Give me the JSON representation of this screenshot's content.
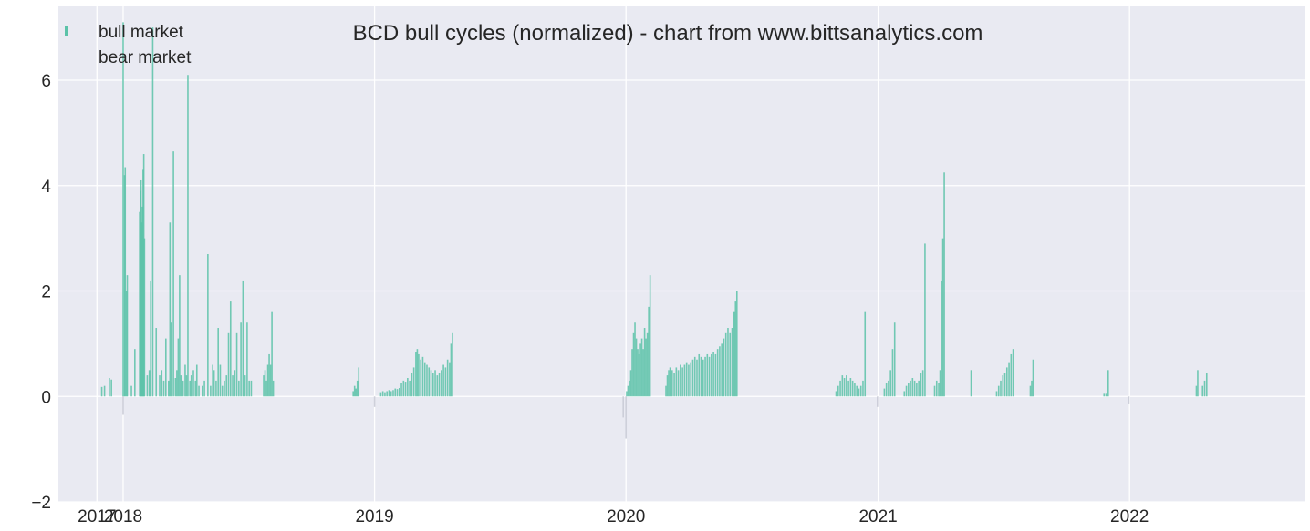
{
  "chart_data": {
    "type": "bar",
    "title": "BCD bull cycles (normalized)  - chart from www.bittsanalytics.com",
    "xlabel": "",
    "ylabel": "",
    "xlim": [
      "2017-09-29",
      "2022-09-12"
    ],
    "ylim": [
      -2,
      7.4
    ],
    "grid": true,
    "legend": {
      "placement": "top-left",
      "entries": [
        "bull market",
        "bear market"
      ]
    },
    "colors": {
      "bull": "#5bc2a8",
      "bear": "#c9cbd6",
      "plot_bg": "#e9eaf2",
      "grid": "#ffffff"
    },
    "x_ticks": [
      {
        "date": "2017-11-24",
        "label": "2017"
      },
      {
        "date": "2018-01-01",
        "label": "2018"
      },
      {
        "date": "2019-01-01",
        "label": "2019"
      },
      {
        "date": "2020-01-01",
        "label": "2020"
      },
      {
        "date": "2021-01-01",
        "label": "2021"
      },
      {
        "date": "2022-01-01",
        "label": "2022"
      }
    ],
    "y_ticks": [
      {
        "value": -2,
        "label": "−2"
      },
      {
        "value": 0,
        "label": "0"
      },
      {
        "value": 2,
        "label": "2"
      },
      {
        "value": 4,
        "label": "4"
      },
      {
        "value": 6,
        "label": "6"
      }
    ],
    "series": [
      {
        "name": "bull market",
        "values": [
          [
            "2017-12-01",
            0.18
          ],
          [
            "2017-12-05",
            0.2
          ],
          [
            "2017-12-12",
            0.35
          ],
          [
            "2017-12-15",
            0.32
          ],
          [
            "2018-01-01",
            7.1
          ],
          [
            "2018-01-03",
            4.2
          ],
          [
            "2018-01-04",
            4.35
          ],
          [
            "2018-01-06",
            2.0
          ],
          [
            "2018-01-07",
            2.3
          ],
          [
            "2018-01-13",
            0.2
          ],
          [
            "2018-01-18",
            0.9
          ],
          [
            "2018-01-25",
            3.5
          ],
          [
            "2018-01-26",
            3.9
          ],
          [
            "2018-01-27",
            4.1
          ],
          [
            "2018-01-28",
            3.3
          ],
          [
            "2018-01-29",
            3.6
          ],
          [
            "2018-01-30",
            4.3
          ],
          [
            "2018-01-31",
            4.6
          ],
          [
            "2018-02-01",
            3.0
          ],
          [
            "2018-02-05",
            0.4
          ],
          [
            "2018-02-08",
            0.5
          ],
          [
            "2018-02-10",
            2.2
          ],
          [
            "2018-02-13",
            7.0
          ],
          [
            "2018-02-18",
            1.3
          ],
          [
            "2018-02-23",
            0.4
          ],
          [
            "2018-02-26",
            0.5
          ],
          [
            "2018-03-01",
            0.3
          ],
          [
            "2018-03-04",
            1.1
          ],
          [
            "2018-03-08",
            0.3
          ],
          [
            "2018-03-10",
            3.3
          ],
          [
            "2018-03-12",
            1.4
          ],
          [
            "2018-03-15",
            4.65
          ],
          [
            "2018-03-18",
            0.35
          ],
          [
            "2018-03-20",
            0.5
          ],
          [
            "2018-03-22",
            1.1
          ],
          [
            "2018-03-24",
            2.3
          ],
          [
            "2018-03-26",
            0.4
          ],
          [
            "2018-03-29",
            0.3
          ],
          [
            "2018-04-01",
            0.6
          ],
          [
            "2018-04-03",
            0.4
          ],
          [
            "2018-04-05",
            6.1
          ],
          [
            "2018-04-08",
            0.3
          ],
          [
            "2018-04-10",
            0.4
          ],
          [
            "2018-04-13",
            0.5
          ],
          [
            "2018-04-16",
            0.3
          ],
          [
            "2018-04-18",
            0.6
          ],
          [
            "2018-04-21",
            0.2
          ],
          [
            "2018-04-26",
            0.2
          ],
          [
            "2018-04-29",
            0.3
          ],
          [
            "2018-05-04",
            2.7
          ],
          [
            "2018-05-08",
            0.2
          ],
          [
            "2018-05-11",
            0.6
          ],
          [
            "2018-05-13",
            0.5
          ],
          [
            "2018-05-16",
            0.3
          ],
          [
            "2018-05-19",
            1.3
          ],
          [
            "2018-05-22",
            0.6
          ],
          [
            "2018-05-25",
            0.2
          ],
          [
            "2018-05-28",
            0.3
          ],
          [
            "2018-05-31",
            0.4
          ],
          [
            "2018-06-03",
            1.2
          ],
          [
            "2018-06-06",
            1.8
          ],
          [
            "2018-06-09",
            0.4
          ],
          [
            "2018-06-12",
            0.5
          ],
          [
            "2018-06-15",
            1.2
          ],
          [
            "2018-06-18",
            0.3
          ],
          [
            "2018-06-21",
            1.4
          ],
          [
            "2018-06-24",
            2.2
          ],
          [
            "2018-06-27",
            0.4
          ],
          [
            "2018-06-30",
            1.4
          ],
          [
            "2018-07-03",
            0.3
          ],
          [
            "2018-07-06",
            0.3
          ],
          [
            "2018-07-24",
            0.4
          ],
          [
            "2018-07-26",
            0.5
          ],
          [
            "2018-07-28",
            0.3
          ],
          [
            "2018-07-30",
            0.6
          ],
          [
            "2018-08-01",
            0.8
          ],
          [
            "2018-08-03",
            0.6
          ],
          [
            "2018-08-05",
            1.6
          ],
          [
            "2018-08-07",
            0.3
          ],
          [
            "2018-12-01",
            0.1
          ],
          [
            "2018-12-03",
            0.2
          ],
          [
            "2018-12-05",
            0.15
          ],
          [
            "2018-12-07",
            0.3
          ],
          [
            "2018-12-09",
            0.55
          ],
          [
            "2019-01-10",
            0.08
          ],
          [
            "2019-01-13",
            0.1
          ],
          [
            "2019-01-16",
            0.08
          ],
          [
            "2019-01-19",
            0.1
          ],
          [
            "2019-01-22",
            0.12
          ],
          [
            "2019-01-25",
            0.1
          ],
          [
            "2019-01-28",
            0.12
          ],
          [
            "2019-01-31",
            0.15
          ],
          [
            "2019-02-03",
            0.14
          ],
          [
            "2019-02-06",
            0.16
          ],
          [
            "2019-02-09",
            0.25
          ],
          [
            "2019-02-12",
            0.3
          ],
          [
            "2019-02-15",
            0.28
          ],
          [
            "2019-02-18",
            0.35
          ],
          [
            "2019-02-21",
            0.3
          ],
          [
            "2019-02-24",
            0.45
          ],
          [
            "2019-02-27",
            0.55
          ],
          [
            "2019-03-02",
            0.85
          ],
          [
            "2019-03-04",
            0.9
          ],
          [
            "2019-03-06",
            0.8
          ],
          [
            "2019-03-09",
            0.7
          ],
          [
            "2019-03-12",
            0.75
          ],
          [
            "2019-03-15",
            0.65
          ],
          [
            "2019-03-18",
            0.6
          ],
          [
            "2019-03-21",
            0.55
          ],
          [
            "2019-03-24",
            0.5
          ],
          [
            "2019-03-27",
            0.45
          ],
          [
            "2019-03-30",
            0.5
          ],
          [
            "2019-04-02",
            0.4
          ],
          [
            "2019-04-05",
            0.45
          ],
          [
            "2019-04-08",
            0.5
          ],
          [
            "2019-04-11",
            0.6
          ],
          [
            "2019-04-14",
            0.55
          ],
          [
            "2019-04-17",
            0.7
          ],
          [
            "2019-04-20",
            0.65
          ],
          [
            "2019-04-22",
            1.0
          ],
          [
            "2019-04-24",
            1.2
          ],
          [
            "2020-01-02",
            0.1
          ],
          [
            "2020-01-04",
            0.2
          ],
          [
            "2020-01-06",
            0.3
          ],
          [
            "2020-01-08",
            0.5
          ],
          [
            "2020-01-10",
            0.9
          ],
          [
            "2020-01-12",
            1.2
          ],
          [
            "2020-01-14",
            1.4
          ],
          [
            "2020-01-16",
            1.1
          ],
          [
            "2020-01-18",
            0.9
          ],
          [
            "2020-01-20",
            0.8
          ],
          [
            "2020-01-22",
            1.0
          ],
          [
            "2020-01-24",
            1.1
          ],
          [
            "2020-01-26",
            0.9
          ],
          [
            "2020-01-28",
            1.3
          ],
          [
            "2020-01-30",
            1.1
          ],
          [
            "2020-02-01",
            1.2
          ],
          [
            "2020-02-03",
            1.7
          ],
          [
            "2020-02-05",
            2.3
          ],
          [
            "2020-02-28",
            0.2
          ],
          [
            "2020-03-01",
            0.4
          ],
          [
            "2020-03-03",
            0.5
          ],
          [
            "2020-03-05",
            0.55
          ],
          [
            "2020-03-08",
            0.5
          ],
          [
            "2020-03-11",
            0.45
          ],
          [
            "2020-03-14",
            0.55
          ],
          [
            "2020-03-17",
            0.5
          ],
          [
            "2020-03-20",
            0.6
          ],
          [
            "2020-03-23",
            0.55
          ],
          [
            "2020-03-26",
            0.6
          ],
          [
            "2020-03-29",
            0.65
          ],
          [
            "2020-04-01",
            0.6
          ],
          [
            "2020-04-04",
            0.65
          ],
          [
            "2020-04-07",
            0.7
          ],
          [
            "2020-04-10",
            0.75
          ],
          [
            "2020-04-13",
            0.7
          ],
          [
            "2020-04-16",
            0.8
          ],
          [
            "2020-04-19",
            0.75
          ],
          [
            "2020-04-22",
            0.7
          ],
          [
            "2020-04-25",
            0.75
          ],
          [
            "2020-04-28",
            0.8
          ],
          [
            "2020-05-01",
            0.75
          ],
          [
            "2020-05-04",
            0.8
          ],
          [
            "2020-05-07",
            0.85
          ],
          [
            "2020-05-10",
            0.8
          ],
          [
            "2020-05-13",
            0.9
          ],
          [
            "2020-05-16",
            0.95
          ],
          [
            "2020-05-19",
            1.0
          ],
          [
            "2020-05-22",
            1.1
          ],
          [
            "2020-05-25",
            1.2
          ],
          [
            "2020-05-28",
            1.3
          ],
          [
            "2020-05-31",
            1.2
          ],
          [
            "2020-06-03",
            1.3
          ],
          [
            "2020-06-06",
            1.6
          ],
          [
            "2020-06-08",
            1.8
          ],
          [
            "2020-06-10",
            2.0
          ],
          [
            "2020-11-01",
            0.1
          ],
          [
            "2020-11-04",
            0.2
          ],
          [
            "2020-11-07",
            0.3
          ],
          [
            "2020-11-10",
            0.4
          ],
          [
            "2020-11-13",
            0.35
          ],
          [
            "2020-11-16",
            0.4
          ],
          [
            "2020-11-19",
            0.3
          ],
          [
            "2020-11-22",
            0.35
          ],
          [
            "2020-11-25",
            0.3
          ],
          [
            "2020-11-28",
            0.25
          ],
          [
            "2020-12-01",
            0.2
          ],
          [
            "2020-12-04",
            0.15
          ],
          [
            "2020-12-07",
            0.2
          ],
          [
            "2020-12-10",
            0.3
          ],
          [
            "2020-12-13",
            1.6
          ],
          [
            "2021-01-10",
            0.15
          ],
          [
            "2021-01-13",
            0.25
          ],
          [
            "2021-01-16",
            0.3
          ],
          [
            "2021-01-19",
            0.5
          ],
          [
            "2021-01-22",
            0.9
          ],
          [
            "2021-01-25",
            1.4
          ],
          [
            "2021-02-08",
            0.1
          ],
          [
            "2021-02-11",
            0.2
          ],
          [
            "2021-02-14",
            0.25
          ],
          [
            "2021-02-17",
            0.3
          ],
          [
            "2021-02-20",
            0.35
          ],
          [
            "2021-02-23",
            0.3
          ],
          [
            "2021-02-26",
            0.25
          ],
          [
            "2021-03-01",
            0.3
          ],
          [
            "2021-03-04",
            0.45
          ],
          [
            "2021-03-07",
            0.5
          ],
          [
            "2021-03-10",
            2.9
          ],
          [
            "2021-03-24",
            0.2
          ],
          [
            "2021-03-27",
            0.3
          ],
          [
            "2021-03-30",
            0.25
          ],
          [
            "2021-04-01",
            0.5
          ],
          [
            "2021-04-03",
            2.2
          ],
          [
            "2021-04-05",
            3.0
          ],
          [
            "2021-04-07",
            4.25
          ],
          [
            "2021-05-16",
            0.5
          ],
          [
            "2021-06-22",
            0.1
          ],
          [
            "2021-06-25",
            0.2
          ],
          [
            "2021-06-28",
            0.3
          ],
          [
            "2021-07-01",
            0.4
          ],
          [
            "2021-07-04",
            0.45
          ],
          [
            "2021-07-07",
            0.55
          ],
          [
            "2021-07-10",
            0.65
          ],
          [
            "2021-07-13",
            0.8
          ],
          [
            "2021-07-16",
            0.9
          ],
          [
            "2021-08-10",
            0.2
          ],
          [
            "2021-08-12",
            0.3
          ],
          [
            "2021-08-14",
            0.7
          ],
          [
            "2021-11-25",
            0.05
          ],
          [
            "2021-11-28",
            0.05
          ],
          [
            "2021-12-01",
            0.5
          ],
          [
            "2022-04-08",
            0.2
          ],
          [
            "2022-04-10",
            0.5
          ],
          [
            "2022-04-17",
            0.2
          ],
          [
            "2022-04-20",
            0.3
          ],
          [
            "2022-04-23",
            0.45
          ]
        ]
      },
      {
        "name": "bear market",
        "values": [
          [
            "2018-01-01",
            -0.35
          ],
          [
            "2019-01-01",
            -0.2
          ],
          [
            "2019-12-28",
            -0.4
          ],
          [
            "2020-01-01",
            -0.8
          ],
          [
            "2020-12-31",
            -0.2
          ],
          [
            "2021-12-31",
            -0.15
          ]
        ]
      }
    ]
  }
}
